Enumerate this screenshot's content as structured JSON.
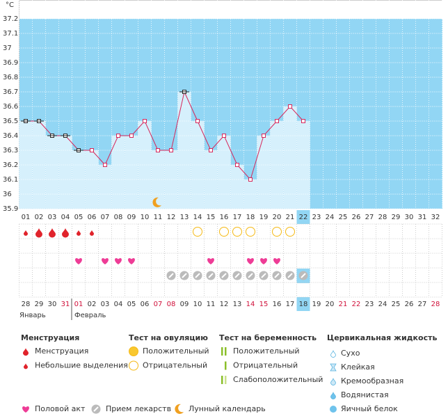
{
  "chart_data": {
    "type": "line",
    "unit": "°C",
    "x": [
      "01",
      "02",
      "03",
      "04",
      "05",
      "06",
      "07",
      "08",
      "09",
      "10",
      "11",
      "12",
      "13",
      "14",
      "15",
      "16",
      "17",
      "18",
      "19",
      "20",
      "21",
      "22",
      "23",
      "24",
      "25",
      "26",
      "27",
      "28",
      "29",
      "30",
      "31",
      "32"
    ],
    "series": [
      {
        "color": "#d6265a",
        "values": [
          36.5,
          36.5,
          36.4,
          36.4,
          36.3,
          36.3,
          36.2,
          36.4,
          36.4,
          36.5,
          36.3,
          36.3,
          36.7,
          36.5,
          36.3,
          36.4,
          36.2,
          36.1,
          36.4,
          36.5,
          36.6,
          36.5,
          null,
          null,
          null,
          null,
          null,
          null,
          null,
          null,
          null,
          null
        ]
      }
    ],
    "ylim": [
      35.9,
      37.2
    ],
    "yticks": [
      35.9,
      36,
      36.1,
      36.2,
      36.3,
      36.4,
      36.5,
      36.6,
      36.7,
      36.8,
      36.9,
      37,
      37.1,
      37.2
    ],
    "grid": true,
    "dates": [
      "28",
      "29",
      "30",
      "31",
      "01",
      "02",
      "03",
      "04",
      "05",
      "06",
      "07",
      "08",
      "09",
      "10",
      "11",
      "12",
      "13",
      "14",
      "15",
      "16",
      "17",
      "18",
      "19",
      "20",
      "21",
      "22",
      "23",
      "24",
      "25",
      "26",
      "27",
      "28"
    ],
    "months": [
      "Январь",
      "Февраль"
    ]
  },
  "legend": {
    "groups": [
      {
        "title": "Менструация",
        "items": [
          "Менструация",
          "Небольшие выделения"
        ]
      },
      {
        "title": "Тест на овуляцию",
        "items": [
          "Положительный",
          "Отрицательный"
        ]
      },
      {
        "title": "Тест на беременность",
        "items": [
          "Положительный",
          "Отрицательный",
          "Слабоположительный"
        ]
      },
      {
        "title": "Цервикальная жидкость",
        "items": [
          "Сухо",
          "Клейкая",
          "Кремообразная",
          "Водянистая",
          "Яичный белок"
        ]
      }
    ],
    "footer": [
      "Половой акт",
      "Прием лекарств",
      "Лунный календарь"
    ]
  }
}
